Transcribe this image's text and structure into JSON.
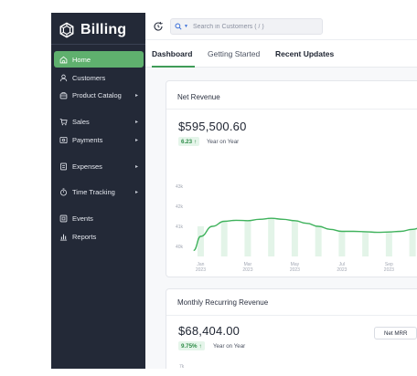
{
  "app": {
    "name": "Billing"
  },
  "sidebar": {
    "items": [
      {
        "label": "Home",
        "icon": "home-icon",
        "active": true,
        "submenu": false
      },
      {
        "label": "Customers",
        "icon": "user-icon",
        "active": false,
        "submenu": false
      },
      {
        "label": "Product Catalog",
        "icon": "package-icon",
        "active": false,
        "submenu": true
      },
      {
        "label": "Sales",
        "icon": "cart-icon",
        "active": false,
        "submenu": true
      },
      {
        "label": "Payments",
        "icon": "payment-icon",
        "active": false,
        "submenu": true
      },
      {
        "label": "Expenses",
        "icon": "receipt-icon",
        "active": false,
        "submenu": true
      },
      {
        "label": "Time Tracking",
        "icon": "stopwatch-icon",
        "active": false,
        "submenu": true
      },
      {
        "label": "Events",
        "icon": "events-icon",
        "active": false,
        "submenu": false
      },
      {
        "label": "Reports",
        "icon": "bar-chart-icon",
        "active": false,
        "submenu": false
      }
    ],
    "caret": "▸"
  },
  "topbar": {
    "search_placeholder": "Search in Customers ( / )"
  },
  "tabs": [
    {
      "label": "Dashboard",
      "active": true
    },
    {
      "label": "Getting Started",
      "active": false
    },
    {
      "label": "Recent Updates",
      "active": false
    }
  ],
  "net_revenue": {
    "title": "Net Revenue",
    "value": "$595,500.60",
    "delta": "6.23",
    "delta_arrow": "↑",
    "delta_label": "Year on Year"
  },
  "mrr": {
    "title": "Monthly Recurring Revenue",
    "value": "$68,404.00",
    "delta": "9.75%",
    "delta_arrow": "↑",
    "delta_label": "Year on Year",
    "button_label": "Net MRR",
    "first_tick": "7k"
  },
  "colors": {
    "sidebar_bg": "#232937",
    "accent": "#5fb06e",
    "line": "#3fb25c",
    "bar": "#e3f4e8"
  },
  "chart_data": {
    "type": "line",
    "title": "Net Revenue",
    "y_ticks": [
      "43k",
      "42k",
      "41k",
      "40k"
    ],
    "ylim": [
      39.5,
      43.5
    ],
    "x_ticks": [
      {
        "month": "Jan",
        "year": "2023",
        "x": 1
      },
      {
        "month": "Mar",
        "year": "2023",
        "x": 3
      },
      {
        "month": "May",
        "year": "2023",
        "x": 5
      },
      {
        "month": "Jul",
        "year": "2023",
        "x": 7
      },
      {
        "month": "Sep",
        "year": "2023",
        "x": 9
      },
      {
        "month": "N",
        "year": "2",
        "x": 11
      }
    ],
    "x": [
      0.7,
      1,
      1.5,
      2,
      2.5,
      3,
      3.5,
      4,
      4.5,
      5,
      5.5,
      6,
      6.5,
      7,
      7.5,
      8,
      8.5,
      9,
      9.5,
      10,
      10.5,
      11,
      11.5
    ],
    "series": [
      {
        "values": [
          39.8,
          40.5,
          41.0,
          41.25,
          41.3,
          41.28,
          41.35,
          41.4,
          41.35,
          41.28,
          41.15,
          41.0,
          40.85,
          40.75,
          40.75,
          40.73,
          40.7,
          40.72,
          40.75,
          40.85,
          41.0,
          41.2,
          41.45
        ]
      }
    ],
    "bars_x": [
      1,
      2,
      3,
      4,
      5,
      6,
      7,
      8,
      9,
      10,
      11
    ],
    "bars_y": [
      41.0,
      41.25,
      41.28,
      41.4,
      41.28,
      41.0,
      40.75,
      40.73,
      40.72,
      40.85,
      41.2
    ],
    "grid": false
  }
}
